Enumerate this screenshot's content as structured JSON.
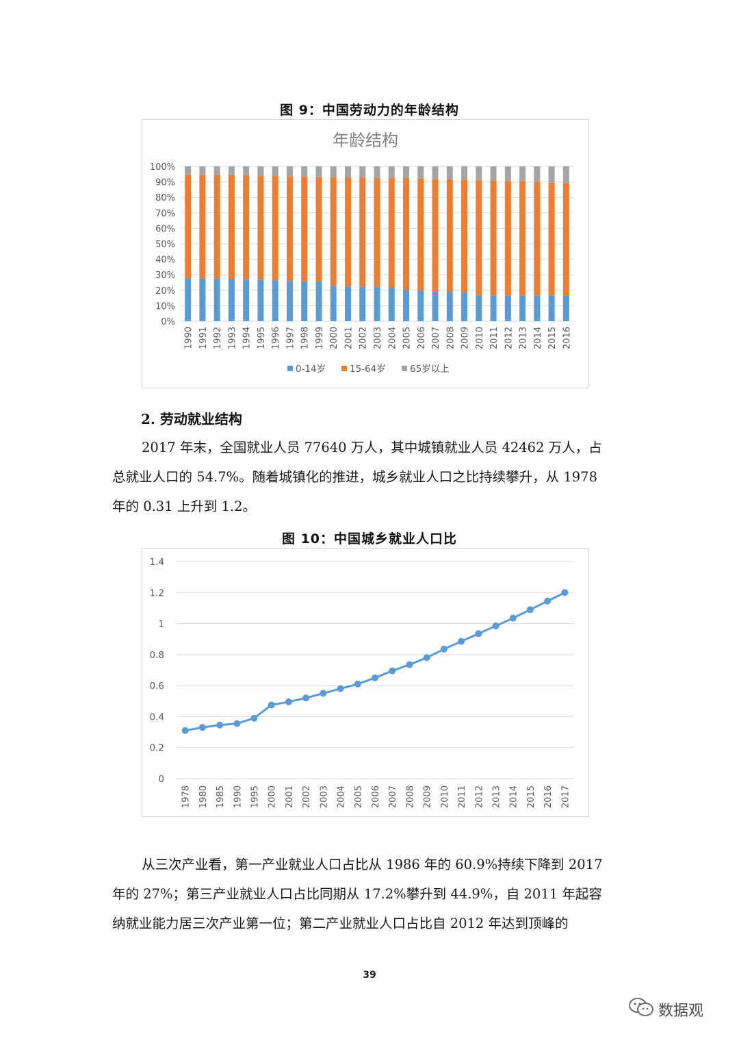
{
  "figure9": {
    "caption": "图 9：中国劳动力的年龄结构",
    "chart_data": {
      "type": "bar",
      "stacked": true,
      "title": "年龄结构",
      "categories": [
        "1990",
        "1991",
        "1992",
        "1993",
        "1994",
        "1995",
        "1996",
        "1997",
        "1998",
        "1999",
        "2000",
        "2001",
        "2002",
        "2003",
        "2004",
        "2005",
        "2006",
        "2007",
        "2008",
        "2009",
        "2010",
        "2011",
        "2012",
        "2013",
        "2014",
        "2015",
        "2016"
      ],
      "series": [
        {
          "name": "0-14岁",
          "color": "#5b9bd5",
          "values": [
            27.7,
            27.7,
            27.6,
            27.2,
            26.9,
            26.6,
            26.4,
            26.0,
            25.7,
            25.4,
            22.9,
            22.5,
            22.4,
            22.1,
            21.5,
            20.3,
            19.8,
            19.4,
            19.0,
            18.5,
            16.6,
            16.5,
            16.5,
            16.4,
            16.5,
            16.5,
            16.7
          ]
        },
        {
          "name": "15-64岁",
          "color": "#ed7d31",
          "values": [
            66.7,
            66.7,
            66.8,
            67.1,
            67.3,
            67.2,
            67.4,
            67.5,
            67.6,
            67.7,
            70.1,
            70.4,
            70.3,
            70.4,
            70.9,
            72.0,
            72.3,
            72.5,
            72.7,
            73.0,
            74.5,
            74.4,
            74.1,
            73.9,
            73.4,
            73.0,
            72.5
          ]
        },
        {
          "name": "65岁以上",
          "color": "#a5a5a5",
          "values": [
            5.6,
            5.6,
            5.6,
            5.7,
            5.8,
            6.2,
            6.2,
            6.5,
            6.7,
            6.9,
            7.0,
            7.1,
            7.3,
            7.5,
            7.6,
            7.7,
            7.9,
            8.1,
            8.3,
            8.5,
            8.9,
            9.1,
            9.4,
            9.7,
            10.1,
            10.5,
            10.8
          ]
        }
      ],
      "y_ticks": [
        "0%",
        "10%",
        "20%",
        "30%",
        "40%",
        "50%",
        "60%",
        "70%",
        "80%",
        "90%",
        "100%"
      ],
      "ylim": [
        0,
        100
      ],
      "legend_position": "bottom",
      "grid": true
    }
  },
  "section": {
    "heading": "2.  劳动就业结构",
    "paragraph1": [
      "2017 年末，全国就业人员 77640 万人，其中城镇就业人员 42462 万人，占",
      "总就业人口的 54.7%。随着城镇化的推进，城乡就业人口之比持续攀升，从 1978",
      "年的 0.31 上升到 1.2。"
    ]
  },
  "figure10": {
    "caption": "图 10：中国城乡就业人口比",
    "chart_data": {
      "type": "line",
      "categories": [
        "1978",
        "1980",
        "1985",
        "1990",
        "1995",
        "2000",
        "2001",
        "2002",
        "2003",
        "2004",
        "2005",
        "2006",
        "2007",
        "2008",
        "2009",
        "2010",
        "2011",
        "2012",
        "2013",
        "2014",
        "2015",
        "2016",
        "2017"
      ],
      "series": [
        {
          "name": "",
          "color": "#5b9bd5",
          "values": [
            0.31,
            0.33,
            0.345,
            0.355,
            0.39,
            0.475,
            0.495,
            0.52,
            0.55,
            0.58,
            0.61,
            0.65,
            0.695,
            0.735,
            0.78,
            0.835,
            0.885,
            0.935,
            0.985,
            1.035,
            1.09,
            1.145,
            1.2
          ]
        }
      ],
      "y_ticks": [
        "0",
        "0.2",
        "0.4",
        "0.6",
        "0.8",
        "1",
        "1.2",
        "1.4"
      ],
      "ylim": [
        0,
        1.4
      ],
      "grid": true
    }
  },
  "paragraph2": [
    "从三次产业看，第一产业就业人口占比从 1986 年的 60.9%持续下降到 2017",
    "年的 27%；第三产业就业人口占比同期从 17.2%攀升到 44.9%，自 2011 年起容",
    "纳就业能力居三次产业第一位；第二产业就业人口占比自  2012  年达到顶峰的"
  ],
  "page_number": "39",
  "watermark": {
    "text": "数据观",
    "icon": "wechat-icon"
  }
}
